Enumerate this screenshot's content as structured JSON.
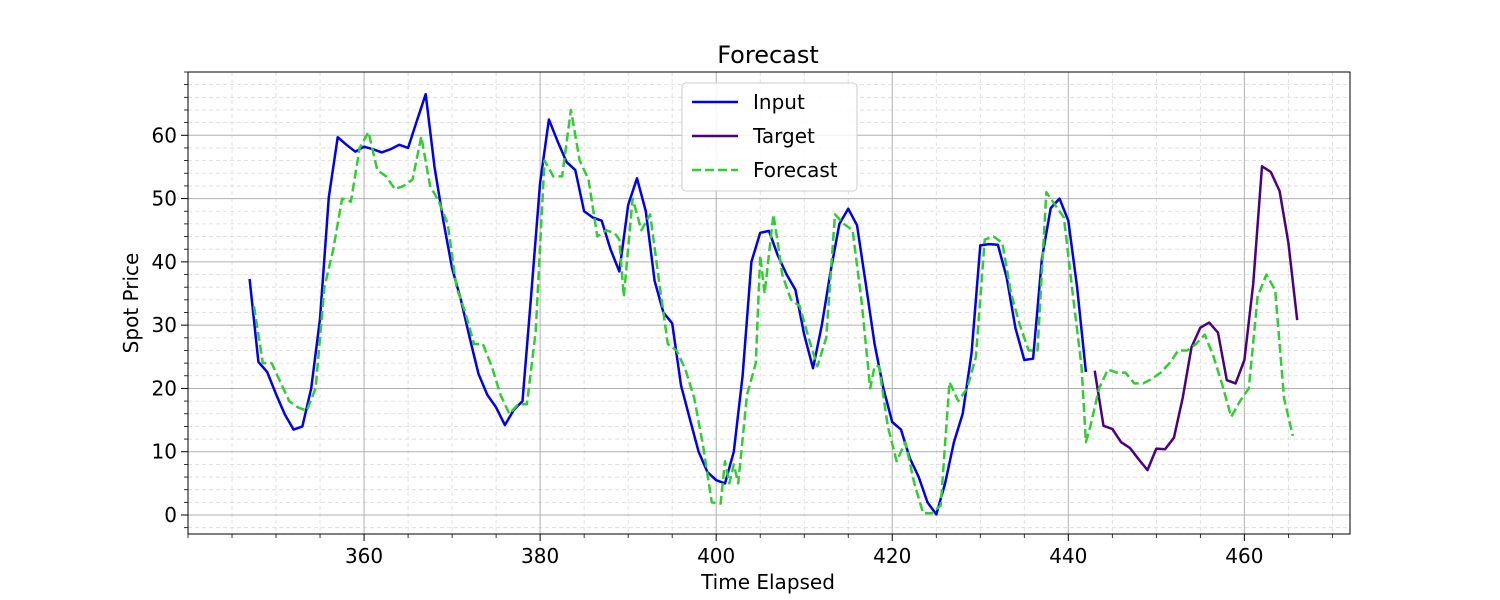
{
  "chart_data": {
    "type": "line",
    "title": "Forecast",
    "xlabel": "Time Elapsed",
    "ylabel": "Spot Price",
    "xlim": [
      340,
      472
    ],
    "ylim": [
      -3,
      70
    ],
    "x_ticks": [
      360,
      380,
      400,
      420,
      440,
      460
    ],
    "y_ticks": [
      0,
      10,
      20,
      30,
      40,
      50,
      60
    ],
    "grid": true,
    "minor_grid": true,
    "legend_position": "top-center",
    "series": [
      {
        "name": "Input",
        "color": "#0000ee",
        "style": "solid",
        "x": [
          347,
          348,
          349,
          350,
          351,
          352,
          353,
          354,
          355,
          356,
          357,
          358,
          359,
          360,
          361,
          362,
          363,
          364,
          365,
          366,
          367,
          368,
          369,
          370,
          371,
          372,
          373,
          374,
          375,
          376,
          377,
          378,
          379,
          380,
          381,
          382,
          383,
          384,
          385,
          386,
          387,
          388,
          389,
          390,
          391,
          392,
          393,
          394,
          395,
          396,
          397,
          398,
          399,
          400,
          401,
          402,
          403,
          404,
          405,
          406,
          407,
          408,
          409,
          410,
          411,
          412,
          413,
          414,
          415,
          416,
          417,
          418,
          419,
          420,
          421,
          422,
          423,
          424,
          425,
          426,
          427,
          428,
          429,
          430,
          431,
          432,
          433,
          434,
          435,
          436,
          437,
          438,
          439,
          440,
          441,
          442
        ],
        "y": [
          37.3,
          24.2,
          22.6,
          19.1,
          15.9,
          13.5,
          14.0,
          20.0,
          31.0,
          50.2,
          59.7,
          58.5,
          57.4,
          58.2,
          57.8,
          57.3,
          57.8,
          58.5,
          58.0,
          62.3,
          66.5,
          55.0,
          46.5,
          39.0,
          34.0,
          28.0,
          22.3,
          19.0,
          17.0,
          14.2,
          16.6,
          18.0,
          35.0,
          52.5,
          62.5,
          59.0,
          55.8,
          54.5,
          48.0,
          47.0,
          46.5,
          42.0,
          38.5,
          49.0,
          53.2,
          48.0,
          37.0,
          32.0,
          30.3,
          20.5,
          15.2,
          10.0,
          6.8,
          5.5,
          5.0,
          10.0,
          22.0,
          40.0,
          44.6,
          44.9,
          41.0,
          38.0,
          35.6,
          28.5,
          23.2,
          30.0,
          38.5,
          46.0,
          48.4,
          45.8,
          36.5,
          27.0,
          20.0,
          14.7,
          13.5,
          9.0,
          6.0,
          2.0,
          0.1,
          5.0,
          11.5,
          16.0,
          25.5,
          42.6,
          42.8,
          42.7,
          37.5,
          29.5,
          24.5,
          24.7,
          40.5,
          48.5,
          50.0,
          46.5,
          36.0,
          22.6
        ]
      },
      {
        "name": "Target",
        "color": "#4b0082",
        "style": "solid",
        "x": [
          443,
          444,
          445,
          446,
          447,
          448,
          449,
          450,
          451,
          452,
          453,
          454,
          455,
          456,
          457,
          458,
          459,
          460,
          461,
          462,
          463,
          464,
          465,
          466
        ],
        "y": [
          22.8,
          14.1,
          13.6,
          11.5,
          10.6,
          8.8,
          7.1,
          10.5,
          10.4,
          12.2,
          18.5,
          26.5,
          29.6,
          30.4,
          28.8,
          21.3,
          20.8,
          24.5,
          36.5,
          55.1,
          54.2,
          51.2,
          43.0,
          30.8
        ]
      },
      {
        "name": "Forecast",
        "color": "#33cc33",
        "style": "dashed",
        "x": [
          347.5,
          348.5,
          349.5,
          350.5,
          351.5,
          352.5,
          353.5,
          354.5,
          355.5,
          356.5,
          357.5,
          358.5,
          359.5,
          360.5,
          361.5,
          362.5,
          363.5,
          364.5,
          365.5,
          366.5,
          367.5,
          368.5,
          369.5,
          370.5,
          371.5,
          372.5,
          373.5,
          374.5,
          375.5,
          376.5,
          377.5,
          378.5,
          379.5,
          380.5,
          381.5,
          382.5,
          383.5,
          384.5,
          385.5,
          386.5,
          387.5,
          388.5,
          389.0,
          389.5,
          390.5,
          391.5,
          392.5,
          393.5,
          394.5,
          395.5,
          396.5,
          397.5,
          398.5,
          399.5,
          400.5,
          401.0,
          401.5,
          402.0,
          402.5,
          403.5,
          404.5,
          405.0,
          405.5,
          406.5,
          407.0,
          407.5,
          408.5,
          409.5,
          410.5,
          411.5,
          412.5,
          413.5,
          414.5,
          415.5,
          416.5,
          417.5,
          418.0,
          418.5,
          419.5,
          420.5,
          421.5,
          422.5,
          423.5,
          424.5,
          425.5,
          426.5,
          427.5,
          428.5,
          429.5,
          430.5,
          431.5,
          432.5,
          433.5,
          434.5,
          435.5,
          436.5,
          437.5,
          438.5,
          439.5,
          440.5,
          441.5,
          442.0,
          442.5,
          443.5,
          444.5,
          445.5,
          446.5,
          447.5,
          448.5,
          449.5,
          450.5,
          451.5,
          452.5,
          453.5,
          454.5,
          455.5,
          456.5,
          457.5,
          458.5,
          459.5,
          460.5,
          461.5,
          462.5,
          463.5,
          464.5,
          465.5
        ],
        "y": [
          33.0,
          24.0,
          24.0,
          21.0,
          18.0,
          17.0,
          16.5,
          20.0,
          36.0,
          42.0,
          50.0,
          49.5,
          58.0,
          60.5,
          54.5,
          53.5,
          51.5,
          52.0,
          53.0,
          59.8,
          52.0,
          49.5,
          46.0,
          36.0,
          32.0,
          27.0,
          27.0,
          23.5,
          19.0,
          16.0,
          17.5,
          17.5,
          29.0,
          56.0,
          53.5,
          53.5,
          64.0,
          56.0,
          53.0,
          44.0,
          45.0,
          44.5,
          43.5,
          34.5,
          50.0,
          45.0,
          47.5,
          37.0,
          27.0,
          26.0,
          23.0,
          18.5,
          11.0,
          2.0,
          1.8,
          8.5,
          5.0,
          8.0,
          5.0,
          19.0,
          24.0,
          41.0,
          35.0,
          47.5,
          43.0,
          38.0,
          34.0,
          33.0,
          28.0,
          23.5,
          28.0,
          47.5,
          46.0,
          45.0,
          34.0,
          20.0,
          23.5,
          23.5,
          14.0,
          8.5,
          11.5,
          5.0,
          0.3,
          0.3,
          1.5,
          21.0,
          18.0,
          20.0,
          25.0,
          43.5,
          44.0,
          43.0,
          35.0,
          30.0,
          26.0,
          26.0,
          51.0,
          49.0,
          47.0,
          35.0,
          23.5,
          11.5,
          14.0,
          20.0,
          23.0,
          22.5,
          22.5,
          20.8,
          20.8,
          21.5,
          22.5,
          24.0,
          26.0,
          26.0,
          27.0,
          28.5,
          25.0,
          20.5,
          15.5,
          18.0,
          20.0,
          34.5,
          38.0,
          35.5,
          18.5,
          12.5
        ]
      }
    ]
  }
}
